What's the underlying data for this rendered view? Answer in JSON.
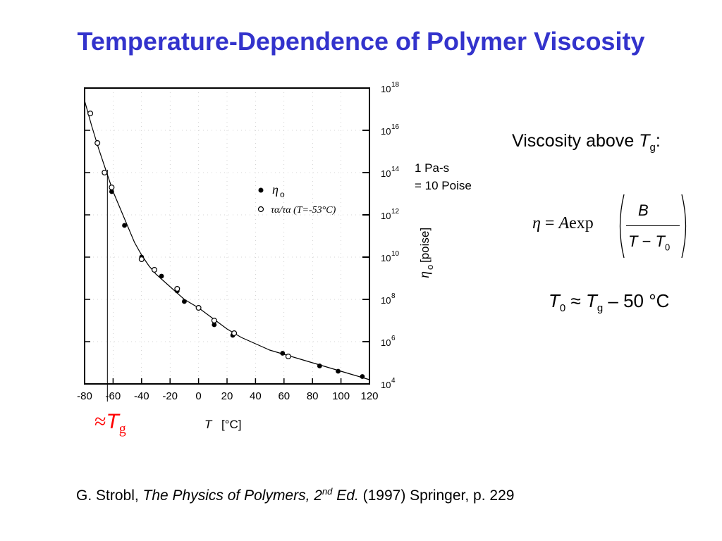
{
  "slide": {
    "title": "Temperature-Dependence of Polymer Viscosity"
  },
  "notes": {
    "viscosity_above": "Viscosity above ",
    "viscosity_above_T": "T",
    "viscosity_above_sub": "g",
    "viscosity_above_colon": ":",
    "unit_line1": "1 Pa-s",
    "unit_line2": "= 10 Poise"
  },
  "equation": {
    "lhs_eta": "η",
    "lhs_eq": " = ",
    "lhs_A": "A",
    "lhs_exp": "exp",
    "numerator": "B",
    "den_T": "T",
    "den_minus": " − ",
    "den_T0": "T",
    "den_T0_sub": "0"
  },
  "relation": {
    "t0": "T",
    "t0_sub": "0",
    "approx": " ≈ ",
    "tg": "T",
    "tg_sub": "g",
    "rest": " – 50 °C"
  },
  "tg_marker": {
    "approx": "≈",
    "T": "T",
    "sub": "g"
  },
  "citation": {
    "author": "G. Strobl, ",
    "book": "The Physics of Polymers, 2",
    "sup": "nd",
    "ed": " Ed.",
    "rest": " (1997) Springer, p. 229"
  },
  "chart_data": {
    "type": "scatter",
    "x_ticks": [
      "-80",
      "-60",
      "-40",
      "-20",
      "0",
      "20",
      "40",
      "60",
      "80",
      "100",
      "120"
    ],
    "x_tick_values": [
      -80,
      -60,
      -40,
      -20,
      0,
      20,
      40,
      60,
      80,
      100,
      120
    ],
    "y_tick_exponents": [
      "18",
      "16",
      "14",
      "12",
      "10",
      "8",
      "6",
      "4"
    ],
    "y_tick_values": [
      18,
      16,
      14,
      12,
      10,
      8,
      6,
      4
    ],
    "y_tick_base": "10",
    "xlim": [
      -80,
      120
    ],
    "ylim_log10": [
      4,
      18
    ],
    "y_scale": "log",
    "xlabel_T": "T",
    "xlabel_unit": "[°C]",
    "ylabel_symbol": "η",
    "ylabel_sub": "o",
    "ylabel_unit": "[poise]",
    "legend": {
      "position": "center-right",
      "entry1_symbol": "η",
      "entry1_sub": "o",
      "entry2_text": "τα/τα (T=-53°C)"
    },
    "tg_line_x": -64,
    "series": [
      {
        "marker": "filled",
        "x": [
          -61,
          -52,
          -40,
          -26,
          -15,
          -10,
          11,
          24,
          59,
          85,
          98,
          115
        ],
        "log10_y": [
          13.1,
          11.5,
          10.0,
          9.1,
          8.4,
          7.9,
          6.8,
          6.3,
          5.45,
          4.85,
          4.6,
          4.35
        ]
      },
      {
        "marker": "open",
        "x": [
          -76,
          -71,
          -66,
          -61,
          -40,
          -31,
          -15,
          0,
          11,
          25,
          63
        ],
        "log10_y": [
          16.8,
          15.4,
          14.0,
          13.3,
          9.9,
          9.4,
          8.5,
          7.6,
          7.0,
          6.4,
          5.3
        ]
      }
    ],
    "fit_curve": {
      "x": [
        -80,
        -75,
        -70,
        -65,
        -60,
        -55,
        -50,
        -45,
        -40,
        -35,
        -30,
        -25,
        -20,
        -15,
        -10,
        -5,
        0,
        10,
        20,
        30,
        40,
        50,
        60,
        70,
        80,
        90,
        100,
        110,
        120
      ],
      "log10_y": [
        17.4,
        16.2,
        15.1,
        14.1,
        13.1,
        12.3,
        11.5,
        10.7,
        10.1,
        9.6,
        9.2,
        8.9,
        8.6,
        8.3,
        8.0,
        7.8,
        7.6,
        7.1,
        6.6,
        6.2,
        5.9,
        5.6,
        5.4,
        5.2,
        5.0,
        4.8,
        4.6,
        4.4,
        4.2
      ]
    }
  }
}
